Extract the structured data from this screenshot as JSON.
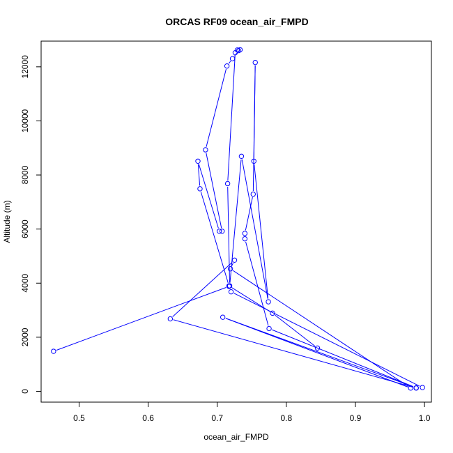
{
  "chart_data": {
    "type": "line",
    "title": "ORCAS RF09 ocean_air_FMPD",
    "xlabel": "ocean_air_FMPD",
    "ylabel": "Altitude (m)",
    "xlim": [
      0.445,
      1.01
    ],
    "ylim": [
      -400,
      12950
    ],
    "xticks": [
      0.5,
      0.6,
      0.7,
      0.8,
      0.9,
      1.0
    ],
    "xtick_labels": [
      "0.5",
      "0.6",
      "0.7",
      "0.8",
      "0.9",
      "1.0"
    ],
    "yticks": [
      0,
      2000,
      4000,
      6000,
      8000,
      10000,
      12000
    ],
    "ytick_labels": [
      "0",
      "2000",
      "4000",
      "6000",
      "8000",
      "10000",
      "12000"
    ],
    "grid": false,
    "line_color": "#0000ff",
    "marker": "open-circle",
    "points": [
      {
        "x": 0.463,
        "y": 1480
      },
      {
        "x": 0.717,
        "y": 3880
      },
      {
        "x": 0.72,
        "y": 3680
      },
      {
        "x": 0.997,
        "y": 140
      },
      {
        "x": 0.988,
        "y": 120
      },
      {
        "x": 0.632,
        "y": 2680
      },
      {
        "x": 0.725,
        "y": 4850
      },
      {
        "x": 0.719,
        "y": 4530
      },
      {
        "x": 0.98,
        "y": 120
      },
      {
        "x": 0.708,
        "y": 2740
      },
      {
        "x": 0.988,
        "y": 130
      },
      {
        "x": 0.775,
        "y": 2320
      },
      {
        "x": 0.74,
        "y": 5640
      },
      {
        "x": 0.74,
        "y": 5840
      },
      {
        "x": 0.752,
        "y": 7290
      },
      {
        "x": 0.755,
        "y": 12160
      },
      {
        "x": 0.753,
        "y": 8510
      },
      {
        "x": 0.774,
        "y": 3310
      },
      {
        "x": 0.735,
        "y": 8690
      },
      {
        "x": 0.718,
        "y": 3900
      },
      {
        "x": 0.715,
        "y": 7680
      },
      {
        "x": 0.726,
        "y": 12520
      },
      {
        "x": 0.733,
        "y": 12630
      },
      {
        "x": 0.729,
        "y": 12620
      },
      {
        "x": 0.731,
        "y": 12600
      },
      {
        "x": 0.722,
        "y": 12300
      },
      {
        "x": 0.714,
        "y": 12030
      },
      {
        "x": 0.683,
        "y": 8930
      },
      {
        "x": 0.707,
        "y": 5920
      },
      {
        "x": 0.703,
        "y": 5920
      },
      {
        "x": 0.672,
        "y": 8510
      },
      {
        "x": 0.675,
        "y": 7490
      },
      {
        "x": 0.717,
        "y": 3900
      },
      {
        "x": 0.78,
        "y": 2890
      },
      {
        "x": 0.845,
        "y": 1600
      }
    ]
  }
}
